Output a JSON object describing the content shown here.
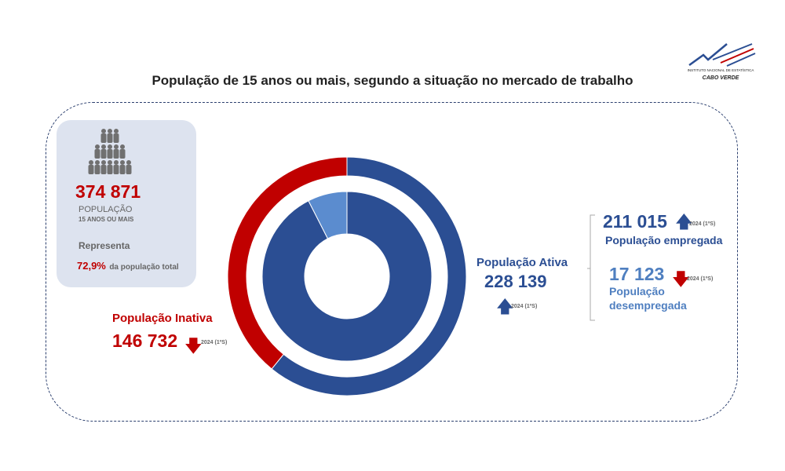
{
  "title": "População de 15 anos ou mais, segundo a situação no mercado de trabalho",
  "logo": {
    "line1": "INSTITUTO NACIONAL DE ESTATÍSTICA",
    "line2": "CABO VERDE"
  },
  "card": {
    "value": "374 871",
    "label1": "POPULAÇÃO",
    "label2": "15 ANOS OU MAIS",
    "represent": "Representa",
    "pct": "72,9%",
    "pct_suffix": "da população total"
  },
  "inactive": {
    "label": "População Inativa",
    "value": "146 732",
    "trend": "down",
    "period": "2024 (1ºS)"
  },
  "active": {
    "label": "População Ativa",
    "value": "228 139",
    "trend": "up",
    "period": "2024 (1ºS)"
  },
  "employed": {
    "label": "População empregada",
    "value": "211 015",
    "trend": "up",
    "period": "2024 (1ºS)"
  },
  "unemployed": {
    "label1": "População",
    "label2": "desempregada",
    "value": "17 123",
    "trend": "down",
    "period": "2024 (1ºS)"
  },
  "colors": {
    "red": "#c00000",
    "blue": "#2b4e93",
    "lightblue": "#5b8ccf"
  },
  "chart_data": {
    "type": "pie",
    "rings": [
      {
        "name": "outer",
        "slices": [
          {
            "label": "População Ativa",
            "value": 228139,
            "color": "#2b4e93"
          },
          {
            "label": "População Inativa",
            "value": 146732,
            "color": "#c00000"
          }
        ]
      },
      {
        "name": "inner",
        "slices": [
          {
            "label": "População empregada",
            "value": 211015,
            "color": "#2b4e93"
          },
          {
            "label": "População desempregada",
            "value": 17123,
            "color": "#5b8ccf"
          }
        ]
      }
    ]
  }
}
